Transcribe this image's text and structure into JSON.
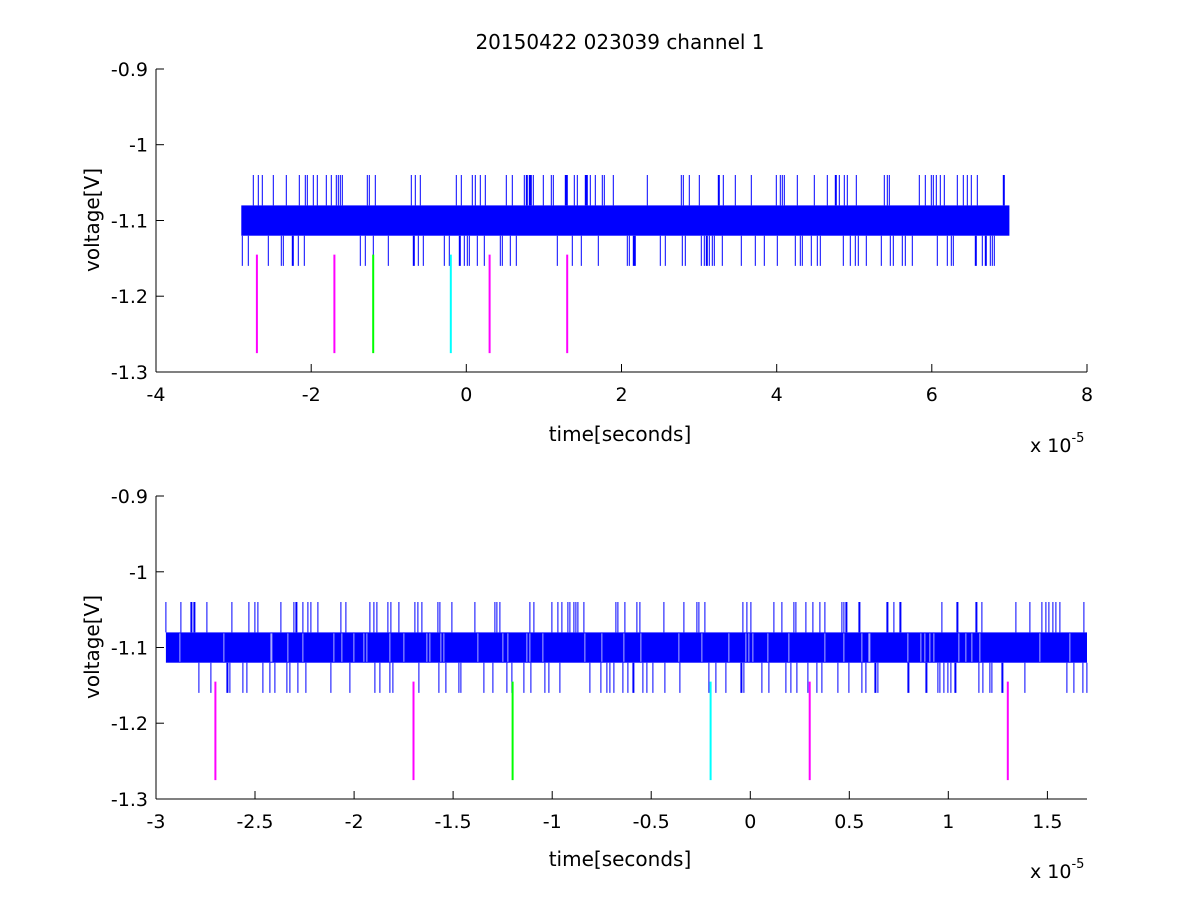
{
  "chart_data": [
    {
      "type": "line",
      "title": "20150422 023039 channel 1",
      "xlabel": "time[seconds]",
      "ylabel": "voltage[V]",
      "x_multiplier": "x 10",
      "x_exponent": "-5",
      "xlim": [
        -4,
        8
      ],
      "ylim": [
        -1.3,
        -0.9
      ],
      "xticks": [
        "-4",
        "-2",
        "0",
        "2",
        "4",
        "6",
        "8"
      ],
      "yticks": [
        "-0.9",
        "-1",
        "-1.1",
        "-1.2",
        "-1.3"
      ],
      "grid": false,
      "signal": {
        "color": "#0000ff",
        "x_start": -2.9,
        "x_end": 7.0,
        "levels": [
          -1.04,
          -1.08,
          -1.12,
          -1.16
        ],
        "band": [
          -1.12,
          -1.08
        ]
      },
      "markers": [
        {
          "x": -2.7,
          "y_top": -1.145,
          "y_bottom": -1.275,
          "color": "#ff00ff"
        },
        {
          "x": -1.7,
          "y_top": -1.145,
          "y_bottom": -1.275,
          "color": "#ff00ff"
        },
        {
          "x": -1.2,
          "y_top": -1.145,
          "y_bottom": -1.275,
          "color": "#00ff00"
        },
        {
          "x": -0.2,
          "y_top": -1.145,
          "y_bottom": -1.275,
          "color": "#00ffff"
        },
        {
          "x": 0.3,
          "y_top": -1.145,
          "y_bottom": -1.275,
          "color": "#ff00ff"
        },
        {
          "x": 1.3,
          "y_top": -1.145,
          "y_bottom": -1.275,
          "color": "#ff00ff"
        }
      ]
    },
    {
      "type": "line",
      "title": "",
      "xlabel": "time[seconds]",
      "ylabel": "voltage[V]",
      "x_multiplier": "x 10",
      "x_exponent": "-5",
      "xlim": [
        -3,
        1.7
      ],
      "ylim": [
        -1.3,
        -0.9
      ],
      "xticks": [
        "-3",
        "-2.5",
        "-2",
        "-1.5",
        "-1",
        "-0.5",
        "0",
        "0.5",
        "1",
        "1.5"
      ],
      "yticks": [
        "-0.9",
        "-1",
        "-1.1",
        "-1.2",
        "-1.3"
      ],
      "grid": false,
      "signal": {
        "color": "#0000ff",
        "x_start": -2.95,
        "x_end": 1.7,
        "levels": [
          -1.04,
          -1.08,
          -1.12,
          -1.16
        ],
        "band": [
          -1.12,
          -1.08
        ]
      },
      "markers": [
        {
          "x": -2.7,
          "y_top": -1.145,
          "y_bottom": -1.275,
          "color": "#ff00ff"
        },
        {
          "x": -1.7,
          "y_top": -1.145,
          "y_bottom": -1.275,
          "color": "#ff00ff"
        },
        {
          "x": -1.2,
          "y_top": -1.145,
          "y_bottom": -1.275,
          "color": "#00ff00"
        },
        {
          "x": -0.2,
          "y_top": -1.145,
          "y_bottom": -1.275,
          "color": "#00ffff"
        },
        {
          "x": 0.3,
          "y_top": -1.145,
          "y_bottom": -1.275,
          "color": "#ff00ff"
        },
        {
          "x": 1.3,
          "y_top": -1.145,
          "y_bottom": -1.275,
          "color": "#ff00ff"
        }
      ]
    }
  ]
}
